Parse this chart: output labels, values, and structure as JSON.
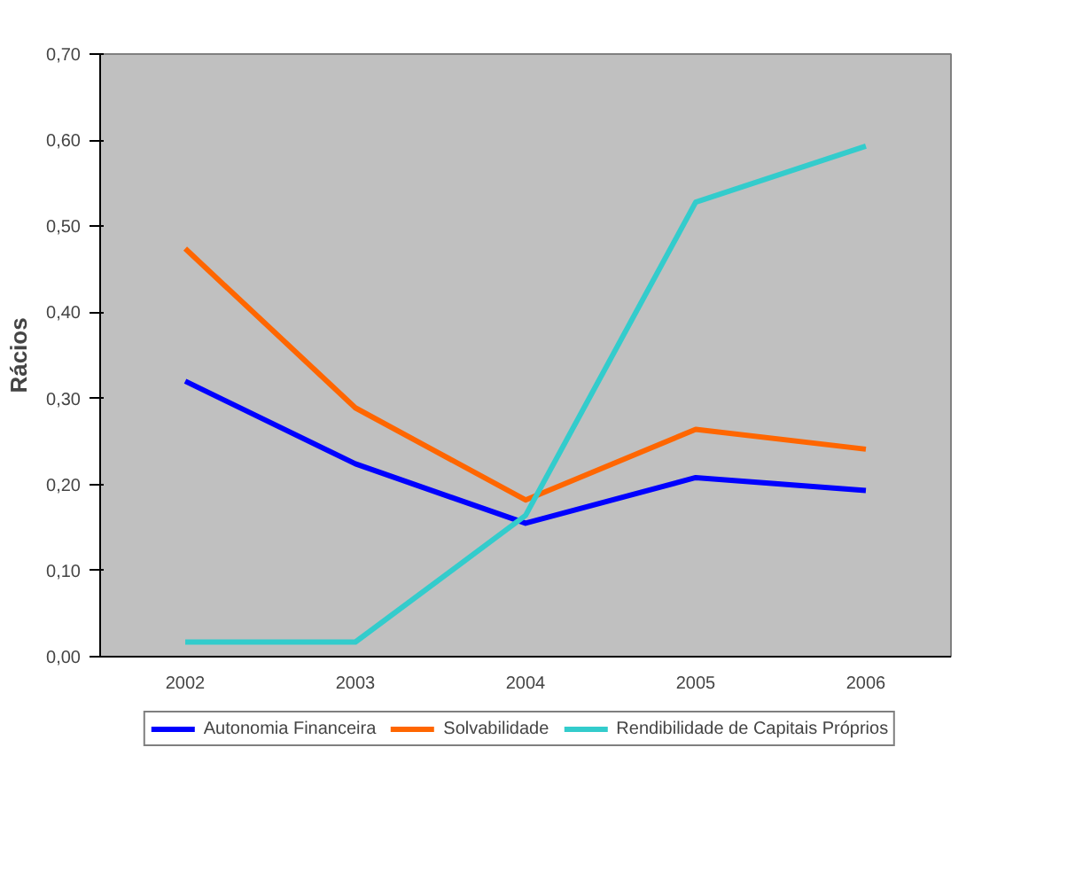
{
  "chart_data": {
    "type": "line",
    "ylabel": "Rácios",
    "categories": [
      "2002",
      "2003",
      "2004",
      "2005",
      "2006"
    ],
    "series": [
      {
        "name": "Autonomia Financeira",
        "color": "#0000ff",
        "values": [
          0.32,
          0.224,
          0.155,
          0.208,
          0.193
        ]
      },
      {
        "name": "Solvabilidade",
        "color": "#ff6600",
        "values": [
          0.474,
          0.289,
          0.182,
          0.264,
          0.241
        ]
      },
      {
        "name": "Rendibilidade de Capitais Próprios",
        "color": "#33cccc",
        "values": [
          0.017,
          0.017,
          0.164,
          0.528,
          0.593
        ]
      }
    ],
    "ylim": [
      0,
      0.7
    ],
    "yticks": [
      {
        "value": 0,
        "label": "0,00"
      },
      {
        "value": 0.1,
        "label": "0,10"
      },
      {
        "value": 0.2,
        "label": "0,20"
      },
      {
        "value": 0.3,
        "label": "0,30"
      },
      {
        "value": 0.4,
        "label": "0,40"
      },
      {
        "value": 0.5,
        "label": "0,50"
      },
      {
        "value": 0.6,
        "label": "0,60"
      },
      {
        "value": 0.7,
        "label": "0,70"
      }
    ],
    "grid": false,
    "legend": "bottom",
    "marker": "none",
    "line_style": "solid"
  }
}
